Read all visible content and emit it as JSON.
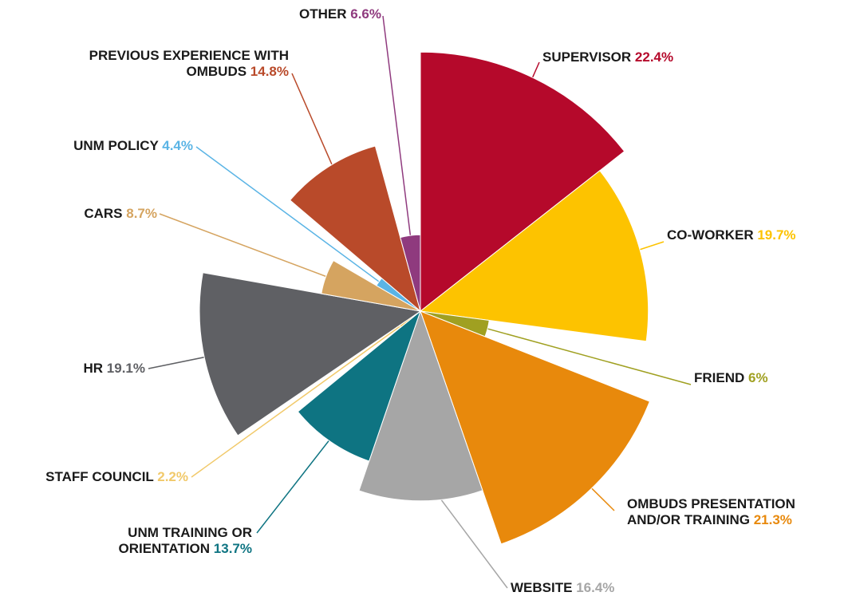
{
  "chart_data": {
    "type": "polar-pie",
    "categories": [
      "SUPERVISOR",
      "CO-WORKER",
      "FRIEND",
      "OMBUDS PRESENTATION AND/OR TRAINING",
      "WEBSITE",
      "UNM TRAINING OR ORIENTATION",
      "STAFF COUNCIL",
      "HR",
      "CARS",
      "UNM POLICY",
      "PREVIOUS EXPERIENCE WITH OMBUDS",
      "OTHER"
    ],
    "values": [
      22.4,
      19.7,
      6,
      21.3,
      16.4,
      13.7,
      2.2,
      19.1,
      8.7,
      4.4,
      14.8,
      6.6
    ],
    "value_labels": [
      "22.4%",
      "19.7%",
      "6%",
      "21.3%",
      "16.4%",
      "13.7%",
      "2.2%",
      "19.1%",
      "8.7%",
      "4.4%",
      "14.8%",
      "6.6%"
    ],
    "colors": [
      "#b5092b",
      "#fdc300",
      "#a0a021",
      "#e8890c",
      "#a6a6a6",
      "#0e7482",
      "#f1c96a",
      "#5f6064",
      "#d5a460",
      "#5ab4e5",
      "#b94a2a",
      "#8f3a7e"
    ]
  }
}
